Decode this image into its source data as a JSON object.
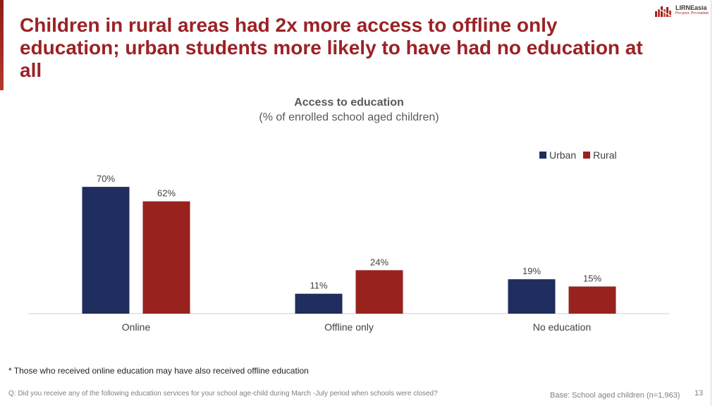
{
  "slide": {
    "title": "Children in rural areas had 2x more access to offline only education; urban students more likely to have had no education at all",
    "footnote": "* Those who received online education may have also received offline education",
    "question": "Q: Did you receive any of the following education services for your school age-child during March -July period when schools were closed?",
    "base": "Base: School aged children (n=1,963)",
    "page_number": "13"
  },
  "logo": {
    "name": "LIRNEasia",
    "tagline": "Pro-poor. Pro-market."
  },
  "colors": {
    "title": "#9b2226",
    "urban": "#1f2d5f",
    "rural": "#98231e",
    "axis": "#d0d0d0",
    "text": "#404040"
  },
  "chart_data": {
    "type": "bar",
    "title": "Access to education",
    "subtitle": "(% of enrolled school aged children)",
    "categories": [
      "Online",
      "Offline only",
      "No education"
    ],
    "series": [
      {
        "name": "Urban",
        "values": [
          70,
          11,
          19
        ],
        "labels": [
          "70%",
          "11%",
          "19%"
        ]
      },
      {
        "name": "Rural",
        "values": [
          62,
          24,
          15
        ],
        "labels": [
          "62%",
          "24%",
          "15%"
        ]
      }
    ],
    "ylim": [
      0,
      100
    ],
    "unit": "%",
    "grid": false,
    "legend_position": "top-right"
  }
}
